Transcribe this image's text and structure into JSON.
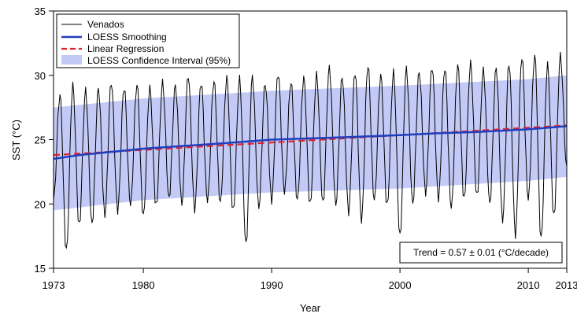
{
  "chart_data": {
    "type": "line",
    "xlabel": "Year",
    "ylabel": "SST (°C)",
    "xlim": [
      1973,
      2013
    ],
    "ylim": [
      15,
      35
    ],
    "xticks": [
      1973,
      1980,
      1990,
      2000,
      2010,
      2013
    ],
    "yticks": [
      15,
      20,
      25,
      30,
      35
    ],
    "grid": false,
    "legend_position": "top-left",
    "legend": [
      {
        "label": "Venados",
        "style": "line",
        "color": "#000000"
      },
      {
        "label": "LOESS Smoothing",
        "style": "line",
        "color": "#1f3fbf"
      },
      {
        "label": "Linear Regression",
        "style": "dashed",
        "color": "#e0202a"
      },
      {
        "label": "LOESS Confidence Interval (95%)",
        "style": "fill",
        "color": "#c3caf6"
      }
    ],
    "annotation": "Trend = 0.57 ± 0.01 (°C/decade)",
    "series": [
      {
        "name": "Venados",
        "kind": "seasonal_line",
        "x_start": 1973,
        "x_end": 2013,
        "annual_peaks": [
          28.5,
          29.2,
          28.8,
          29.0,
          29.5,
          29.1,
          29.3,
          29.0,
          29.4,
          29.2,
          30.0,
          29.5,
          29.6,
          29.8,
          29.7,
          29.9,
          29.4,
          30.2,
          29.5,
          29.8,
          30.0,
          30.6,
          29.9,
          30.3,
          30.8,
          30.0,
          30.2,
          30.5,
          30.3,
          30.7,
          30.6,
          30.8,
          30.9,
          30.4,
          30.6,
          31.0,
          31.5,
          31.6,
          30.8,
          31.5,
          31.1
        ],
        "annual_troughs": [
          20.3,
          16.3,
          18.3,
          18.5,
          19.2,
          19.5,
          19.9,
          19.0,
          19.8,
          20.5,
          20.1,
          19.6,
          20.2,
          20.0,
          19.4,
          16.9,
          19.8,
          20.3,
          20.9,
          20.2,
          19.9,
          20.1,
          20.0,
          19.4,
          18.7,
          20.2,
          19.8,
          17.5,
          20.1,
          20.9,
          20.4,
          19.6,
          20.3,
          20.6,
          20.1,
          18.8,
          17.6,
          20.3,
          17.2,
          19.0,
          22.9
        ]
      },
      {
        "name": "LOESS Smoothing",
        "x": [
          1973,
          1975,
          1977,
          1980,
          1983,
          1986,
          1990,
          1993,
          1996,
          2000,
          2003,
          2006,
          2010,
          2013
        ],
        "values": [
          23.5,
          23.8,
          24.0,
          24.3,
          24.5,
          24.7,
          25.0,
          25.1,
          25.2,
          25.35,
          25.5,
          25.6,
          25.8,
          26.05
        ]
      },
      {
        "name": "Linear Regression",
        "x": [
          1973,
          2013
        ],
        "values": [
          23.8,
          26.1
        ]
      },
      {
        "name": "LOESS Confidence Interval (95%)",
        "x": [
          1973,
          1980,
          1990,
          2000,
          2010,
          2013
        ],
        "lower": [
          19.5,
          20.3,
          20.9,
          21.2,
          21.8,
          22.1
        ],
        "upper": [
          27.5,
          28.2,
          28.8,
          29.2,
          29.7,
          30.0
        ]
      }
    ]
  }
}
